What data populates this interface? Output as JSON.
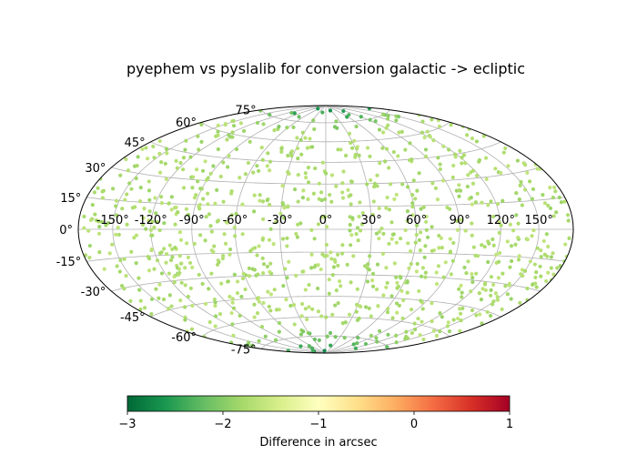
{
  "chart_data": {
    "type": "scatter",
    "projection": "hammer",
    "title": "pyephem vs pyslalib for conversion galactic -> ecliptic",
    "x_ticks": [
      "-150°",
      "-120°",
      "-90°",
      "-60°",
      "-30°",
      "0°",
      "30°",
      "60°",
      "90°",
      "120°",
      "150°"
    ],
    "x_tick_values": [
      -150,
      -120,
      -90,
      -60,
      -30,
      0,
      30,
      60,
      90,
      120,
      150
    ],
    "y_ticks": [
      "-75°",
      "-60°",
      "-45°",
      "-30°",
      "-15°",
      "0°",
      "15°",
      "30°",
      "45°",
      "60°",
      "75°"
    ],
    "y_tick_values": [
      -75,
      -60,
      -45,
      -30,
      -15,
      0,
      15,
      30,
      45,
      60,
      75
    ],
    "xlim": [
      -180,
      180
    ],
    "ylim": [
      -90,
      90
    ],
    "grid": true,
    "marker_color_typical": "#d4ee9b",
    "points_summary": "about 1000 points spread over the whole sky; differences mostly -1.5 to -2 arcsec, lower values (about -2.5 to -2.8) near the poles",
    "colorbar": {
      "label": "Difference in arcsec",
      "ticks": [
        "−3",
        "−2",
        "−1",
        "0",
        "1"
      ],
      "tick_values": [
        -3,
        -2,
        -1,
        0,
        1
      ],
      "range": [
        -3,
        1
      ],
      "colormap": "RdYlGn_r",
      "colormap_stops": [
        "#006837",
        "#1a9850",
        "#66bd63",
        "#a6d96a",
        "#d9ef8b",
        "#ffffbf",
        "#fee08b",
        "#fdae61",
        "#f46d43",
        "#d73027",
        "#a50026"
      ]
    }
  }
}
